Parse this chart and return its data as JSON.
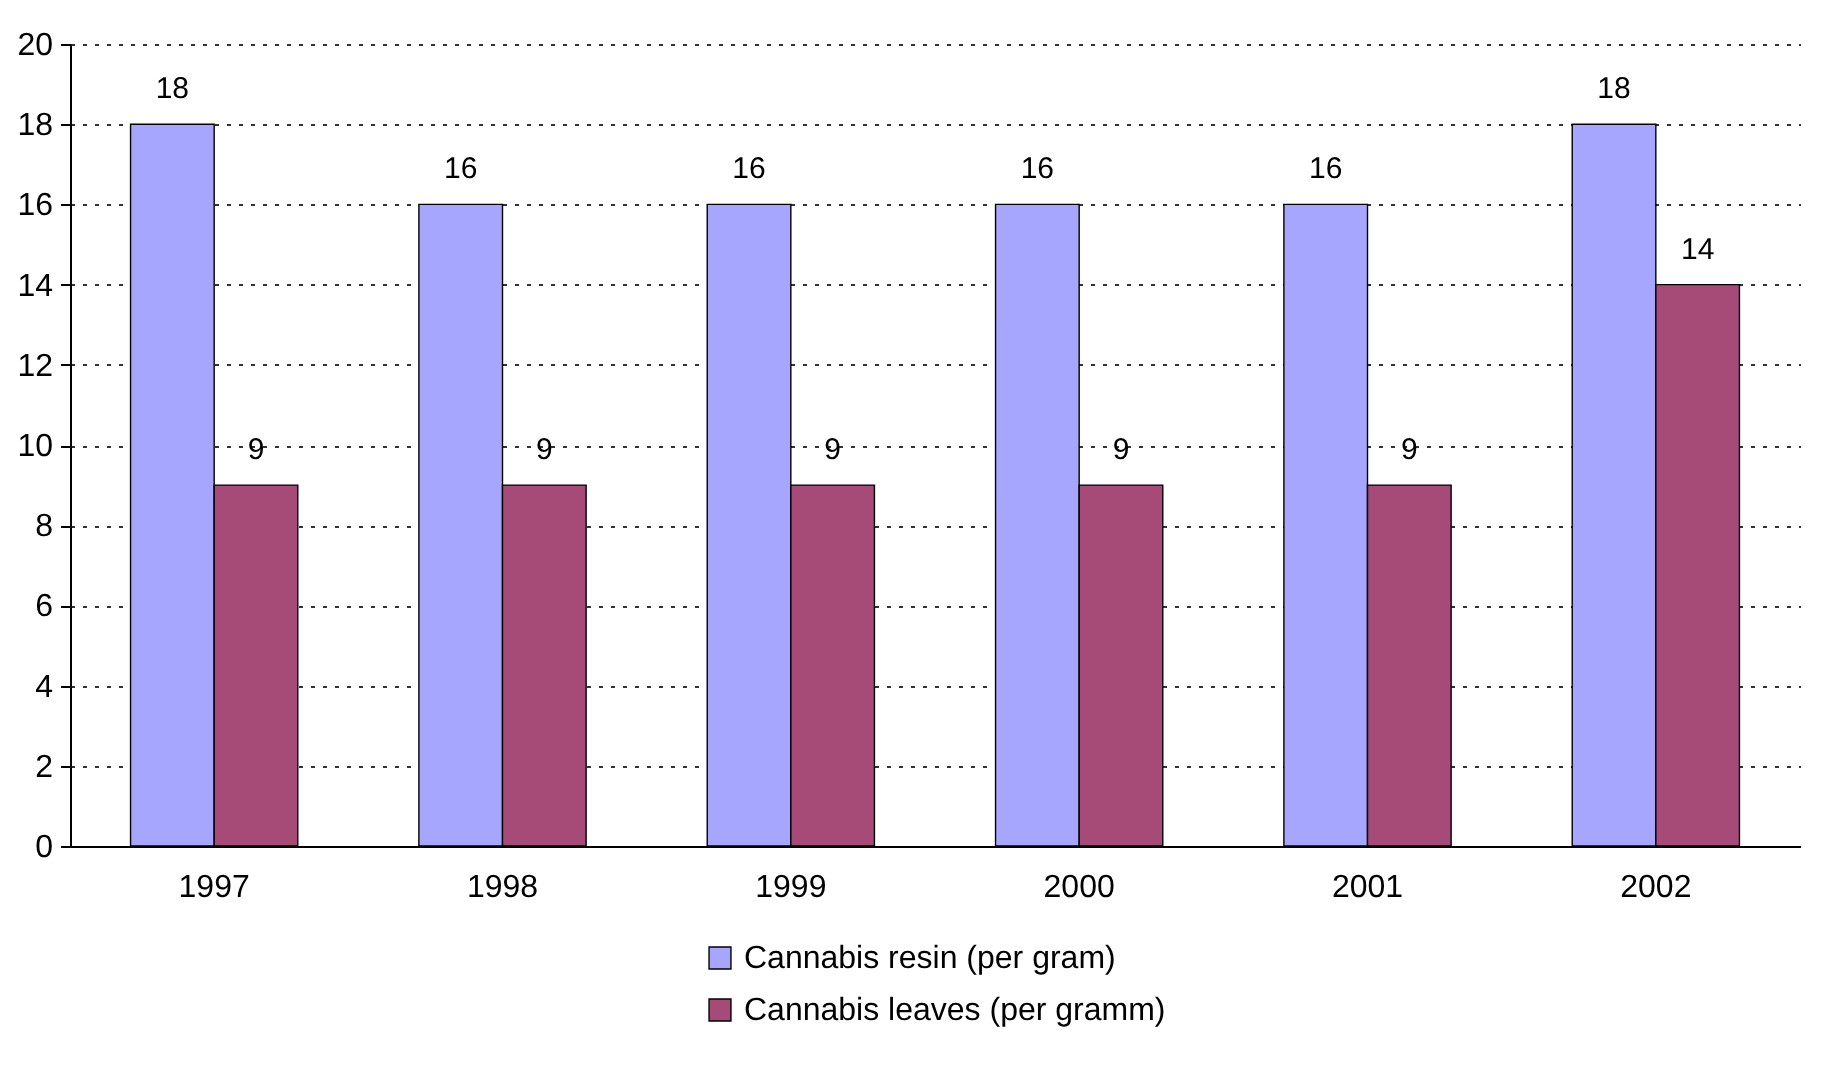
{
  "chart_data": {
    "type": "bar",
    "categories": [
      "1997",
      "1998",
      "1999",
      "2000",
      "2001",
      "2002"
    ],
    "series": [
      {
        "name": "Cannabis resin (per gram)",
        "color": "#a6a6ff",
        "values": [
          18,
          16,
          16,
          16,
          16,
          18
        ]
      },
      {
        "name": "Cannabis leaves (per gramm)",
        "color": "#a64a78",
        "values": [
          9,
          9,
          9,
          9,
          9,
          14
        ]
      }
    ],
    "ylim": [
      0,
      20
    ],
    "yticks": [
      0,
      2,
      4,
      6,
      8,
      10,
      12,
      14,
      16,
      18,
      20
    ],
    "grid": "y",
    "legend": "bottom",
    "data_labels": true
  }
}
